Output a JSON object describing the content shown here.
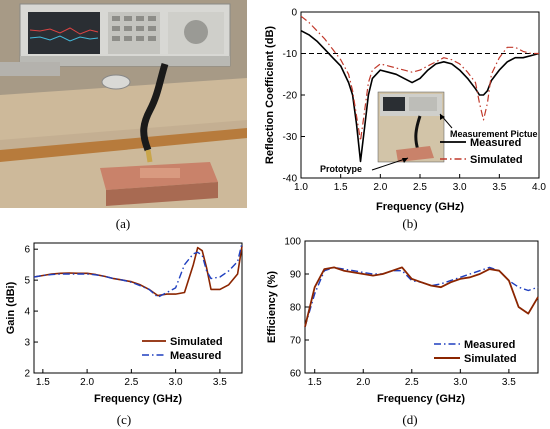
{
  "captions": {
    "a": "(a)",
    "b": "(b)",
    "c": "(c)",
    "d": "(d)"
  },
  "photo_annotations": {
    "prototype": "Prototype",
    "measurement": "Measurement Pictue"
  },
  "chart_data": [
    {
      "id": "b",
      "type": "line",
      "xlabel": "Frequency (GHz)",
      "ylabel": "Reflection Coefficient (dB)",
      "xlim": [
        1.0,
        4.0
      ],
      "ylim": [
        -40,
        0
      ],
      "xticks": [
        1.0,
        1.5,
        2.0,
        2.5,
        3.0,
        3.5,
        4.0
      ],
      "xtick_labels": [
        "1.0",
        "1.5",
        "2.0",
        "2.5",
        "3.0",
        "3.5",
        "4.0"
      ],
      "yticks": [
        -40,
        -30,
        -20,
        -10,
        0
      ],
      "ytick_labels": [
        "-40",
        "-30",
        "-20",
        "-10",
        "0"
      ],
      "reference_line": -10,
      "legend_position": "lower-right",
      "series": [
        {
          "name": "Measured",
          "color": "#000000",
          "dash": "solid",
          "x": [
            1.0,
            1.1,
            1.2,
            1.3,
            1.4,
            1.5,
            1.6,
            1.65,
            1.7,
            1.75,
            1.8,
            1.85,
            1.9,
            2.0,
            2.1,
            2.2,
            2.3,
            2.4,
            2.5,
            2.6,
            2.7,
            2.8,
            2.9,
            3.0,
            3.1,
            3.2,
            3.25,
            3.3,
            3.35,
            3.4,
            3.5,
            3.6,
            3.7,
            3.8,
            3.9,
            4.0
          ],
          "y": [
            -4.5,
            -5.5,
            -7,
            -9,
            -11,
            -13,
            -17,
            -20,
            -27,
            -36,
            -28,
            -20,
            -16,
            -14,
            -14.5,
            -15,
            -16,
            -17,
            -16,
            -14,
            -12.5,
            -12,
            -12.5,
            -14,
            -16,
            -18.5,
            -20,
            -20,
            -19,
            -16.5,
            -14,
            -12,
            -11,
            -11,
            -10.5,
            -10
          ]
        },
        {
          "name": "Simulated",
          "color": "#c0392b",
          "dash": "dashdot",
          "x": [
            1.0,
            1.1,
            1.2,
            1.3,
            1.4,
            1.5,
            1.6,
            1.65,
            1.7,
            1.75,
            1.8,
            1.85,
            1.9,
            2.0,
            2.1,
            2.2,
            2.3,
            2.4,
            2.5,
            2.6,
            2.7,
            2.8,
            2.9,
            3.0,
            3.1,
            3.2,
            3.25,
            3.3,
            3.35,
            3.4,
            3.5,
            3.6,
            3.7,
            3.8,
            3.9,
            4.0
          ],
          "y": [
            -1,
            -2.5,
            -4.5,
            -6.5,
            -9,
            -11.5,
            -15,
            -19,
            -25,
            -31,
            -24,
            -17,
            -14,
            -12.5,
            -13,
            -13.5,
            -14,
            -14.5,
            -14,
            -13,
            -12,
            -11,
            -11.5,
            -12.5,
            -14.5,
            -17,
            -22,
            -26,
            -22,
            -15,
            -11,
            -8.5,
            -8.5,
            -9.5,
            -10,
            -10
          ]
        }
      ]
    },
    {
      "id": "c",
      "type": "line",
      "xlabel": "Frequency (GHz)",
      "ylabel": "Gain (dBi)",
      "xlim": [
        1.4,
        3.75
      ],
      "ylim": [
        2,
        6.2
      ],
      "xticks": [
        1.5,
        2.0,
        2.5,
        3.0,
        3.5
      ],
      "xtick_labels": [
        "1.5",
        "2.0",
        "2.5",
        "3.0",
        "3.5"
      ],
      "yticks": [
        2,
        3,
        4,
        5,
        6
      ],
      "ytick_labels": [
        "2",
        "3",
        "4",
        "5",
        "6"
      ],
      "legend_position": "bottom-right",
      "series": [
        {
          "name": "Simulated",
          "color": "#8b2500",
          "dash": "solid",
          "x": [
            1.4,
            1.5,
            1.6,
            1.7,
            1.8,
            1.9,
            2.0,
            2.1,
            2.2,
            2.3,
            2.4,
            2.5,
            2.6,
            2.7,
            2.8,
            2.9,
            3.0,
            3.1,
            3.2,
            3.25,
            3.3,
            3.35,
            3.4,
            3.5,
            3.6,
            3.7,
            3.75
          ],
          "y": [
            5.1,
            5.15,
            5.2,
            5.22,
            5.23,
            5.22,
            5.22,
            5.18,
            5.12,
            5.05,
            5.0,
            4.95,
            4.85,
            4.7,
            4.5,
            4.55,
            4.55,
            4.6,
            5.5,
            6.05,
            5.95,
            5.4,
            4.7,
            4.7,
            4.85,
            5.2,
            6.1
          ]
        },
        {
          "name": "Measured",
          "color": "#1f3fbf",
          "dash": "dashdot",
          "x": [
            1.4,
            1.5,
            1.6,
            1.7,
            1.8,
            1.9,
            2.0,
            2.1,
            2.2,
            2.3,
            2.4,
            2.5,
            2.6,
            2.7,
            2.8,
            2.9,
            3.0,
            3.1,
            3.2,
            3.25,
            3.3,
            3.35,
            3.4,
            3.5,
            3.6,
            3.7,
            3.75
          ],
          "y": [
            5.1,
            5.15,
            5.18,
            5.2,
            5.2,
            5.2,
            5.2,
            5.17,
            5.12,
            5.05,
            5.0,
            4.93,
            4.82,
            4.7,
            4.45,
            4.6,
            4.75,
            5.5,
            5.85,
            5.9,
            5.8,
            5.3,
            5.05,
            5.1,
            5.3,
            5.6,
            6.2
          ]
        }
      ]
    },
    {
      "id": "d",
      "type": "line",
      "xlabel": "Frequency (GHz)",
      "ylabel": "Efficiency (%)",
      "xlim": [
        1.4,
        3.8
      ],
      "ylim": [
        60,
        100
      ],
      "xticks": [
        1.5,
        2.0,
        2.5,
        3.0,
        3.5
      ],
      "xtick_labels": [
        "1.5",
        "2.0",
        "2.5",
        "3.0",
        "3.5"
      ],
      "yticks": [
        60,
        70,
        80,
        90,
        100
      ],
      "ytick_labels": [
        "60",
        "70",
        "80",
        "90",
        "100"
      ],
      "legend_position": "bottom-right",
      "series": [
        {
          "name": "Measured",
          "color": "#1f3fbf",
          "dash": "dashdot",
          "x": [
            1.4,
            1.5,
            1.6,
            1.7,
            1.8,
            1.9,
            2.0,
            2.1,
            2.2,
            2.3,
            2.4,
            2.5,
            2.6,
            2.7,
            2.8,
            2.9,
            3.0,
            3.1,
            3.2,
            3.3,
            3.4,
            3.5,
            3.6,
            3.7,
            3.8
          ],
          "y": [
            74,
            84,
            91,
            92,
            91.5,
            91,
            90.5,
            90,
            90,
            91,
            91,
            88,
            87.5,
            86.5,
            87,
            88,
            89,
            90,
            91,
            92,
            91,
            88,
            86,
            85,
            86
          ]
        },
        {
          "name": "Simulated",
          "color": "#8b2500",
          "dash": "solid",
          "x": [
            1.4,
            1.5,
            1.6,
            1.7,
            1.8,
            1.9,
            2.0,
            2.1,
            2.2,
            2.3,
            2.4,
            2.5,
            2.6,
            2.7,
            2.8,
            2.9,
            3.0,
            3.1,
            3.2,
            3.3,
            3.4,
            3.5,
            3.6,
            3.7,
            3.8
          ],
          "y": [
            74,
            86,
            91.5,
            92,
            91,
            90.5,
            90,
            89.5,
            90,
            91,
            92,
            88.5,
            87.5,
            86.5,
            86,
            87.5,
            88.5,
            89,
            90,
            91.5,
            91,
            88,
            80,
            78,
            83
          ]
        }
      ]
    }
  ]
}
